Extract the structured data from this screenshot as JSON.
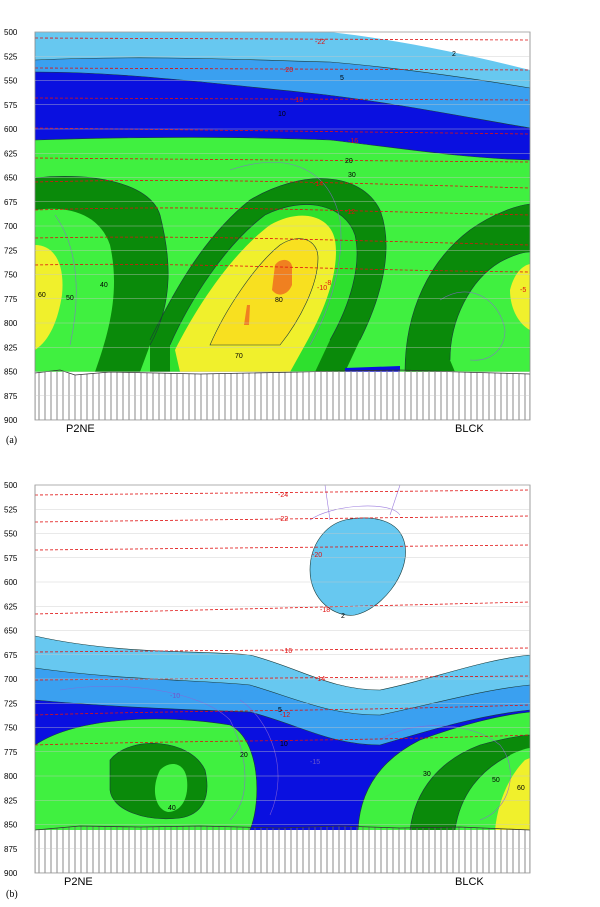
{
  "colors": {
    "c2": "#67c8f0",
    "c5": "#3aa0f0",
    "c10": "#0a10e0",
    "c20": "#1cc81c",
    "c30": "#40f040",
    "c40": "#0a8a0a",
    "c50": "#2ee02e",
    "c60": "#f0f02c",
    "c70": "#f8e020",
    "c80": "#f08020",
    "temp": "#e01010",
    "purple": "#8a64d8",
    "hatch": "#777777"
  },
  "chart_data": [
    {
      "type": "contour-cross-section",
      "panel_label": "(a)",
      "y_ticks": [
        "500",
        "525",
        "550",
        "575",
        "600",
        "625",
        "650",
        "675",
        "700",
        "725",
        "750",
        "775",
        "800",
        "825",
        "850",
        "875",
        "900"
      ],
      "station_left": "P2NE",
      "station_right": "BLCK",
      "temperature_labels": [
        "-22",
        "-20",
        "-18",
        "-16",
        "-14",
        "-12",
        "-10",
        "-8",
        "-6",
        "-5"
      ],
      "contour_labels": [
        "2",
        "5",
        "10",
        "20",
        "30",
        "40",
        "50",
        "60",
        "70",
        "80"
      ]
    },
    {
      "type": "contour-cross-section",
      "panel_label": "(b)",
      "y_ticks": [
        "500",
        "525",
        "550",
        "575",
        "600",
        "625",
        "650",
        "675",
        "700",
        "725",
        "750",
        "775",
        "800",
        "825",
        "850",
        "875",
        "900"
      ],
      "station_left": "P2NE",
      "station_right": "BLCK",
      "temperature_labels": [
        "-24",
        "-22",
        "-20",
        "-18",
        "-16",
        "-14",
        "-12",
        "-10",
        "-15"
      ],
      "contour_labels": [
        "2",
        "5",
        "10",
        "20",
        "30",
        "40",
        "50",
        "60"
      ]
    }
  ]
}
